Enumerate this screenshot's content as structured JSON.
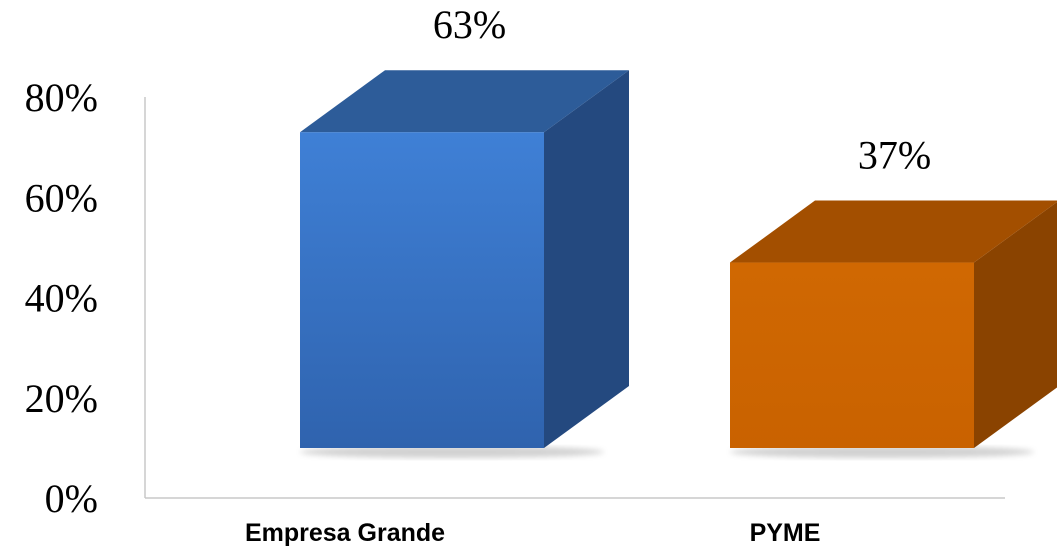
{
  "chart_data": {
    "type": "bar",
    "style": "3d-column",
    "title": "",
    "xlabel": "",
    "ylabel": "",
    "categories": [
      "Empresa Grande",
      "PYME"
    ],
    "values": [
      63,
      37
    ],
    "data_labels": [
      "63%",
      "37%"
    ],
    "ylim": [
      0,
      80
    ],
    "y_ticks": [
      0,
      20,
      40,
      60,
      80
    ],
    "y_tick_labels": [
      "0%",
      "20%",
      "40%",
      "60%",
      "80%"
    ],
    "grid": false,
    "legend": "none",
    "colors": {
      "Empresa Grande": "#3a78c8",
      "PYME": "#cc6600"
    }
  }
}
